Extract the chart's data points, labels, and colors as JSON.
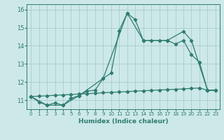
{
  "xlabel": "Humidex (Indice chaleur)",
  "xlim": [
    -0.5,
    23.5
  ],
  "ylim": [
    10.5,
    16.3
  ],
  "yticks": [
    11,
    12,
    13,
    14,
    15,
    16
  ],
  "xticks": [
    0,
    1,
    2,
    3,
    4,
    5,
    6,
    7,
    8,
    9,
    10,
    11,
    12,
    13,
    14,
    15,
    16,
    17,
    18,
    19,
    20,
    21,
    22,
    23
  ],
  "bg_color": "#cde8e8",
  "grid_color": "#aacccc",
  "line_color": "#2e7d6e",
  "line1_x": [
    0,
    1,
    2,
    3,
    4,
    5,
    6,
    7,
    8,
    9,
    10,
    11,
    12,
    13,
    14,
    15,
    16,
    17,
    18,
    19,
    20,
    21,
    22,
    23
  ],
  "line1_y": [
    11.2,
    10.9,
    10.72,
    10.85,
    10.72,
    11.1,
    11.25,
    11.5,
    11.55,
    12.2,
    12.5,
    14.85,
    15.8,
    15.45,
    14.3,
    14.3,
    14.3,
    14.3,
    14.1,
    14.3,
    13.5,
    13.1,
    11.55,
    11.55
  ],
  "line2_x": [
    0,
    2,
    4,
    6,
    9,
    12,
    14,
    17,
    19,
    20,
    22,
    23
  ],
  "line2_y": [
    11.2,
    10.72,
    10.72,
    11.25,
    12.2,
    15.8,
    14.3,
    14.3,
    14.8,
    14.3,
    11.55,
    11.55
  ],
  "line3_x": [
    0,
    1,
    2,
    3,
    4,
    5,
    6,
    7,
    8,
    9,
    10,
    11,
    12,
    13,
    14,
    15,
    16,
    17,
    18,
    19,
    20,
    21,
    22,
    23
  ],
  "line3_y": [
    11.2,
    11.22,
    11.24,
    11.27,
    11.29,
    11.31,
    11.34,
    11.36,
    11.38,
    11.41,
    11.43,
    11.45,
    11.47,
    11.5,
    11.52,
    11.54,
    11.56,
    11.58,
    11.6,
    11.62,
    11.65,
    11.67,
    11.55,
    11.55
  ]
}
